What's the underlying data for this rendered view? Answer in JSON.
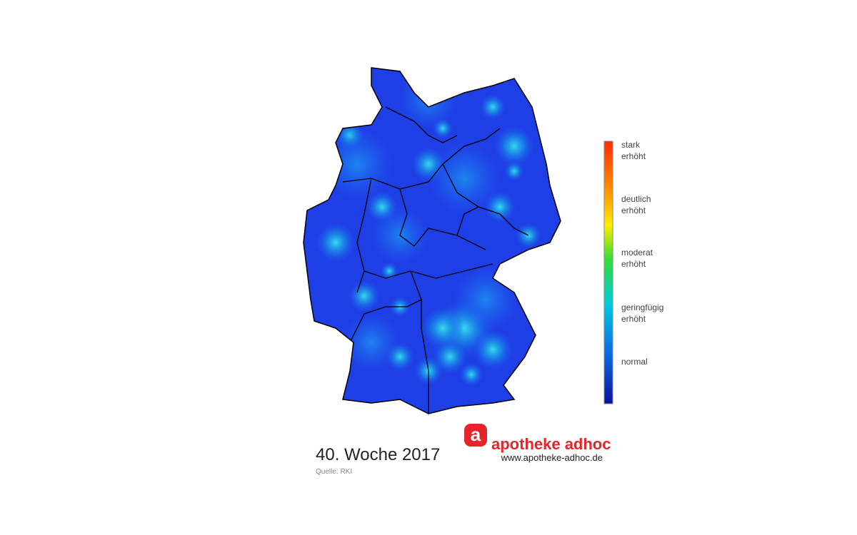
{
  "legend": {
    "labels": [
      [
        "stark",
        "erhöht"
      ],
      [
        "deutlich",
        "erhöht"
      ],
      [
        "moderat",
        "erhöht"
      ],
      [
        "geringfügig",
        "erhöht"
      ],
      [
        "normal"
      ]
    ]
  },
  "caption": {
    "title": "40. Woche 2017",
    "source": "Quelle: RKI"
  },
  "logo": {
    "icon": "a",
    "name": "apotheke adhoc",
    "url": "www.apotheke-adhoc.de"
  }
}
